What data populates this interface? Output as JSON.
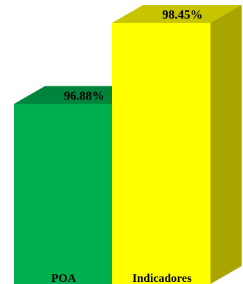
{
  "chart_data": {
    "type": "bar",
    "categories": [
      "POA",
      "Indicadores"
    ],
    "values": [
      96.88,
      98.45
    ],
    "value_labels": [
      "96.88%",
      "98.45%"
    ],
    "ylim": [
      93.4,
      98.45
    ],
    "grid": false,
    "legend": "none",
    "style": "3d",
    "colors": {
      "POA": {
        "front": "#00b050",
        "top": "#00843c",
        "side": "#007a36"
      },
      "Indicadores": {
        "front": "#ffff00",
        "top": "#c9c400",
        "side": "#a8a400"
      }
    }
  }
}
